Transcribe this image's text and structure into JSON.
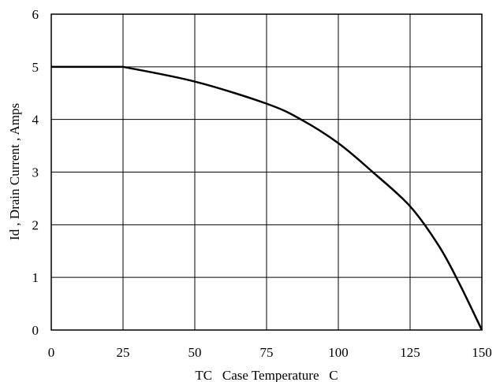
{
  "chart_data": {
    "type": "line",
    "xlabel": "TC   Case Temperature   C",
    "ylabel": "Id , Drain Current , Amps",
    "xlim": [
      0,
      150
    ],
    "ylim": [
      0,
      6
    ],
    "xticks": [
      0,
      25,
      50,
      75,
      100,
      125,
      150
    ],
    "yticks": [
      0,
      1,
      2,
      3,
      4,
      5,
      6
    ],
    "xtick_labels": [
      "0",
      "25",
      "50",
      "75",
      "100",
      "125",
      "150"
    ],
    "ytick_labels": [
      "0",
      "1",
      "2",
      "3",
      "4",
      "5",
      "6"
    ],
    "grid": true,
    "series": [
      {
        "x": [
          0,
          25,
          50,
          75,
          87,
          100,
          112,
          125,
          135,
          142,
          150
        ],
        "y": [
          5.0,
          5.0,
          4.72,
          4.3,
          4.0,
          3.55,
          3.0,
          2.35,
          1.6,
          0.9,
          0.0
        ]
      }
    ],
    "colors": {
      "line": "#000000",
      "grid": "#000000",
      "frame": "#000000"
    }
  }
}
